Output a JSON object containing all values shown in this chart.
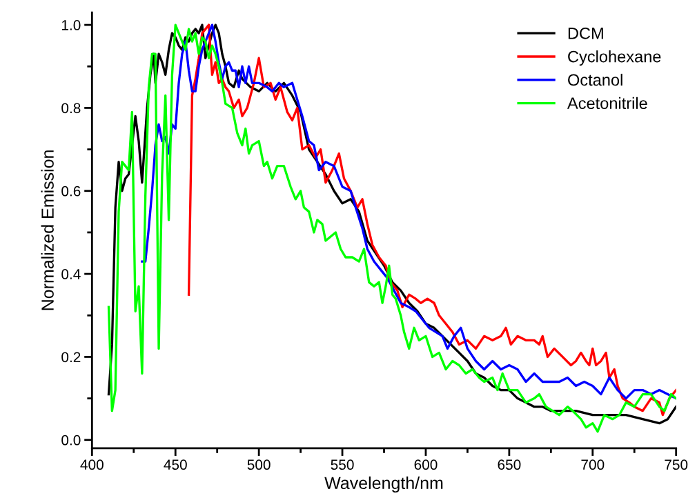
{
  "chart_data": {
    "type": "line",
    "xlabel": "Wavelength/nm",
    "ylabel": "Normalized Emission",
    "xlim": [
      400,
      750
    ],
    "xticks": [
      400,
      450,
      500,
      550,
      600,
      650,
      700,
      750
    ],
    "ylim": [
      -0.02,
      1.03
    ],
    "yticks": [
      {
        "value": 0,
        "label": "0.0"
      },
      0.2,
      0.4,
      0.6,
      0.8,
      {
        "value": 1,
        "label": "1.0"
      }
    ],
    "legend": "top right",
    "grid": false,
    "marker": "none",
    "line_style": "solid",
    "series": [
      {
        "name": "DCM",
        "color": "#000000",
        "x": [
          410,
          412,
          414,
          416,
          418,
          420,
          422,
          426,
          428,
          430,
          431,
          433,
          435,
          437,
          438,
          440,
          442,
          444,
          446,
          448,
          450,
          452,
          454,
          456,
          458,
          460,
          462,
          464,
          466,
          468,
          470,
          472,
          474,
          476,
          478,
          480,
          482,
          485,
          488,
          490,
          495,
          500,
          505,
          510,
          515,
          520,
          525,
          530,
          535,
          540,
          545,
          550,
          555,
          560,
          565,
          570,
          575,
          580,
          585,
          590,
          595,
          600,
          605,
          610,
          615,
          620,
          625,
          630,
          635,
          640,
          645,
          650,
          655,
          660,
          665,
          670,
          675,
          680,
          690,
          700,
          710,
          720,
          730,
          740,
          745,
          750
        ],
        "values": [
          0.11,
          0.23,
          0.56,
          0.67,
          0.6,
          0.63,
          0.64,
          0.78,
          0.72,
          0.62,
          0.68,
          0.8,
          0.88,
          0.93,
          0.86,
          0.93,
          0.91,
          0.88,
          0.94,
          0.98,
          0.97,
          0.95,
          0.94,
          0.97,
          0.96,
          0.98,
          0.99,
          0.98,
          1.0,
          0.92,
          0.95,
          0.98,
          1.0,
          0.98,
          0.93,
          0.9,
          0.86,
          0.85,
          0.89,
          0.87,
          0.85,
          0.84,
          0.86,
          0.84,
          0.86,
          0.83,
          0.79,
          0.7,
          0.67,
          0.64,
          0.6,
          0.57,
          0.58,
          0.55,
          0.48,
          0.45,
          0.42,
          0.38,
          0.36,
          0.33,
          0.31,
          0.28,
          0.27,
          0.25,
          0.23,
          0.21,
          0.19,
          0.16,
          0.15,
          0.13,
          0.12,
          0.12,
          0.1,
          0.09,
          0.08,
          0.08,
          0.07,
          0.07,
          0.07,
          0.06,
          0.06,
          0.06,
          0.05,
          0.04,
          0.05,
          0.08
        ]
      },
      {
        "name": "Cyclohexane",
        "color": "#ff0000",
        "x": [
          458,
          460,
          462,
          464,
          466,
          468,
          470,
          472,
          474,
          476,
          478,
          480,
          482,
          485,
          488,
          490,
          493,
          497,
          500,
          503,
          507,
          510,
          513,
          517,
          520,
          523,
          526,
          530,
          534,
          537,
          540,
          544,
          548,
          551,
          555,
          559,
          562,
          565,
          568,
          572,
          576,
          579,
          583,
          586,
          590,
          594,
          597,
          601,
          605,
          608,
          612,
          616,
          620,
          625,
          630,
          635,
          640,
          645,
          648,
          651,
          655,
          660,
          665,
          668,
          670,
          673,
          677,
          682,
          687,
          690,
          693,
          696,
          698,
          700,
          702,
          705,
          708,
          710,
          713,
          715,
          718,
          722,
          725,
          730,
          735,
          740,
          742,
          746,
          750
        ],
        "values": [
          0.35,
          0.83,
          0.87,
          0.92,
          0.98,
          0.99,
          1.0,
          0.88,
          0.91,
          0.86,
          0.87,
          0.85,
          0.84,
          0.8,
          0.82,
          0.78,
          0.8,
          0.86,
          0.92,
          0.85,
          0.86,
          0.82,
          0.85,
          0.79,
          0.77,
          0.8,
          0.7,
          0.71,
          0.68,
          0.7,
          0.62,
          0.65,
          0.69,
          0.63,
          0.6,
          0.56,
          0.58,
          0.52,
          0.47,
          0.44,
          0.42,
          0.38,
          0.36,
          0.32,
          0.35,
          0.34,
          0.33,
          0.34,
          0.33,
          0.3,
          0.28,
          0.26,
          0.23,
          0.24,
          0.22,
          0.25,
          0.24,
          0.25,
          0.27,
          0.23,
          0.25,
          0.24,
          0.24,
          0.23,
          0.25,
          0.2,
          0.22,
          0.2,
          0.18,
          0.19,
          0.21,
          0.19,
          0.18,
          0.22,
          0.18,
          0.19,
          0.21,
          0.15,
          0.17,
          0.13,
          0.1,
          0.09,
          0.08,
          0.07,
          0.1,
          0.09,
          0.06,
          0.1,
          0.12
        ]
      },
      {
        "name": "Octanol",
        "color": "#0000ff",
        "x": [
          430,
          432,
          434,
          436,
          438,
          440,
          442,
          444,
          446,
          448,
          450,
          452,
          454,
          456,
          458,
          460,
          462,
          464,
          466,
          468,
          470,
          472,
          474,
          476,
          478,
          480,
          482,
          484,
          486,
          488,
          490,
          492,
          494,
          496,
          500,
          505,
          508,
          512,
          515,
          520,
          523,
          526,
          530,
          533,
          536,
          540,
          545,
          550,
          555,
          558,
          562,
          565,
          569,
          573,
          577,
          581,
          585,
          590,
          594,
          598,
          602,
          606,
          610,
          613,
          617,
          621,
          625,
          630,
          635,
          640,
          645,
          650,
          655,
          660,
          665,
          670,
          675,
          680,
          685,
          690,
          695,
          700,
          705,
          710,
          715,
          720,
          725,
          730,
          735,
          740,
          745,
          750
        ],
        "values": [
          0.43,
          0.43,
          0.51,
          0.6,
          0.71,
          0.76,
          0.72,
          0.73,
          0.69,
          0.76,
          0.75,
          0.86,
          0.93,
          0.96,
          0.89,
          0.84,
          0.84,
          0.9,
          0.94,
          0.96,
          0.98,
          1.0,
          0.96,
          0.91,
          0.87,
          0.9,
          0.91,
          0.89,
          0.89,
          0.85,
          0.9,
          0.86,
          0.9,
          0.86,
          0.86,
          0.85,
          0.84,
          0.86,
          0.85,
          0.86,
          0.82,
          0.78,
          0.72,
          0.71,
          0.65,
          0.67,
          0.66,
          0.61,
          0.6,
          0.56,
          0.51,
          0.46,
          0.43,
          0.41,
          0.39,
          0.36,
          0.33,
          0.32,
          0.31,
          0.29,
          0.27,
          0.26,
          0.25,
          0.22,
          0.25,
          0.27,
          0.22,
          0.19,
          0.17,
          0.19,
          0.17,
          0.18,
          0.17,
          0.14,
          0.16,
          0.14,
          0.14,
          0.14,
          0.15,
          0.13,
          0.14,
          0.13,
          0.11,
          0.15,
          0.12,
          0.1,
          0.12,
          0.12,
          0.11,
          0.12,
          0.11,
          0.1
        ]
      },
      {
        "name": "Acetonitrile",
        "color": "#00ff00",
        "x": [
          410,
          412,
          414,
          416,
          418,
          420,
          422,
          424,
          426,
          428,
          430,
          432,
          434,
          436,
          438,
          440,
          442,
          444,
          446,
          448,
          450,
          452,
          454,
          456,
          458,
          460,
          462,
          464,
          466,
          468,
          470,
          472,
          474,
          476,
          478,
          480,
          484,
          487,
          490,
          492,
          494,
          496,
          500,
          503,
          505,
          508,
          511,
          515,
          519,
          522,
          525,
          527,
          530,
          533,
          535,
          538,
          540,
          543,
          546,
          549,
          552,
          556,
          560,
          563,
          566,
          569,
          572,
          574,
          576,
          578,
          580,
          582,
          585,
          587,
          590,
          593,
          596,
          600,
          604,
          608,
          612,
          616,
          620,
          624,
          628,
          632,
          635,
          640,
          643,
          646,
          650,
          655,
          660,
          665,
          668,
          672,
          676,
          680,
          685,
          688,
          693,
          696,
          700,
          703,
          707,
          712,
          716,
          720,
          725,
          730,
          735,
          740,
          743,
          747,
          750
        ],
        "values": [
          0.32,
          0.07,
          0.12,
          0.55,
          0.67,
          0.66,
          0.65,
          0.79,
          0.31,
          0.37,
          0.16,
          0.59,
          0.85,
          0.93,
          0.93,
          0.22,
          0.64,
          0.83,
          0.53,
          0.88,
          1.0,
          0.98,
          0.96,
          0.94,
          0.99,
          0.96,
          0.98,
          0.93,
          0.97,
          0.96,
          0.92,
          0.95,
          0.93,
          0.9,
          0.86,
          0.81,
          0.8,
          0.74,
          0.71,
          0.75,
          0.69,
          0.71,
          0.72,
          0.66,
          0.67,
          0.63,
          0.66,
          0.66,
          0.61,
          0.58,
          0.6,
          0.56,
          0.55,
          0.5,
          0.53,
          0.52,
          0.48,
          0.49,
          0.5,
          0.46,
          0.44,
          0.44,
          0.43,
          0.46,
          0.38,
          0.37,
          0.38,
          0.33,
          0.37,
          0.42,
          0.35,
          0.34,
          0.3,
          0.26,
          0.22,
          0.27,
          0.24,
          0.25,
          0.2,
          0.21,
          0.17,
          0.19,
          0.18,
          0.16,
          0.17,
          0.15,
          0.14,
          0.15,
          0.12,
          0.16,
          0.12,
          0.12,
          0.09,
          0.1,
          0.11,
          0.08,
          0.07,
          0.06,
          0.08,
          0.07,
          0.05,
          0.03,
          0.04,
          0.02,
          0.06,
          0.05,
          0.06,
          0.09,
          0.08,
          0.11,
          0.11,
          0.08,
          0.07,
          0.11,
          0.1
        ]
      }
    ]
  }
}
